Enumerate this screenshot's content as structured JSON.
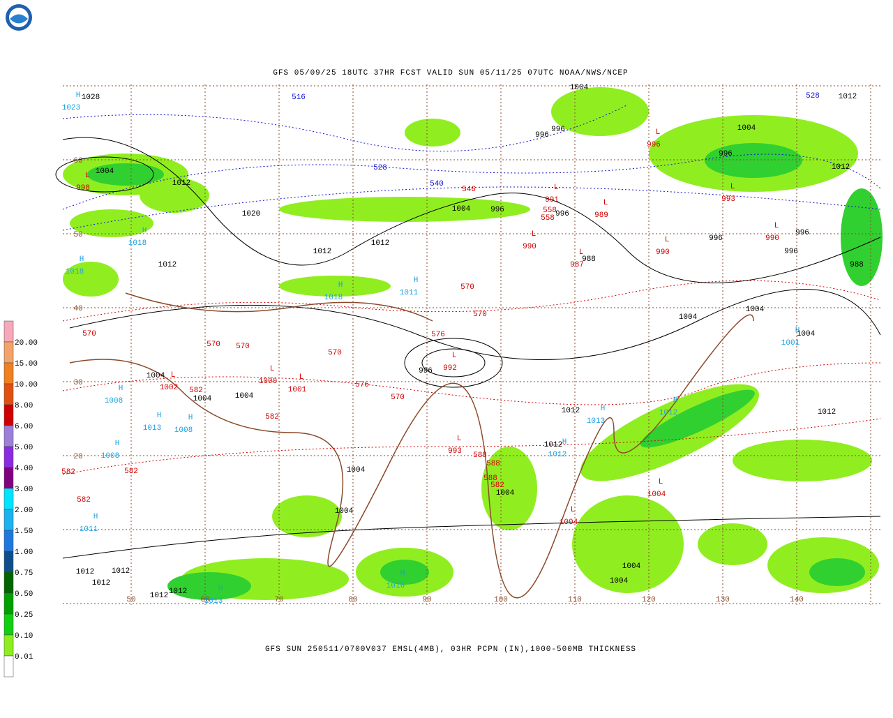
{
  "header": {
    "title": "GFS 05/09/25 18UTC 37HR FCST VALID SUN 05/11/25 07UTC NOAA/NWS/NCEP"
  },
  "caption": "GFS SUN 250511/0700V037 EMSL(4MB), 03HR PCPN (IN),1000-500MB THICKNESS",
  "legend": [
    "20.00",
    "15.00",
    "10.00",
    "8.00",
    "6.00",
    "5.00",
    "4.00",
    "3.00",
    "2.00",
    "1.50",
    "1.00",
    "0.75",
    "0.50",
    "0.25",
    "0.10",
    "0.01"
  ],
  "longitude_labels": [
    "50",
    "60",
    "70",
    "80",
    "90",
    "100",
    "110",
    "120",
    "130",
    "140"
  ],
  "latitude_labels": [
    "60",
    "50",
    "40",
    "30",
    "20"
  ],
  "high_centers": [
    {
      "symbol": "H",
      "value": "1023"
    },
    {
      "symbol": "H",
      "value": "1018"
    },
    {
      "symbol": "H",
      "value": "1018"
    },
    {
      "symbol": "H",
      "value": "1018"
    },
    {
      "symbol": "H",
      "value": "1011"
    },
    {
      "symbol": "H",
      "value": "1008"
    },
    {
      "symbol": "H",
      "value": "1013"
    },
    {
      "symbol": "H",
      "value": "1008"
    },
    {
      "symbol": "H",
      "value": "1008"
    },
    {
      "symbol": "H",
      "value": "1011"
    },
    {
      "symbol": "H",
      "value": "1013"
    },
    {
      "symbol": "H",
      "value": "1012"
    },
    {
      "symbol": "H",
      "value": "1012"
    },
    {
      "symbol": "H",
      "value": "1001"
    },
    {
      "symbol": "H",
      "value": "1016"
    },
    {
      "symbol": "H",
      "value": "1013"
    }
  ],
  "low_centers": [
    {
      "symbol": "L",
      "value": "998"
    },
    {
      "symbol": "L",
      "value": "996"
    },
    {
      "symbol": "L",
      "value": "993"
    },
    {
      "symbol": "L",
      "value": "991"
    },
    {
      "symbol": "L",
      "value": "989"
    },
    {
      "symbol": "L",
      "value": "990"
    },
    {
      "symbol": "L",
      "value": "987"
    },
    {
      "symbol": "L",
      "value": "990"
    },
    {
      "symbol": "L",
      "value": "990"
    },
    {
      "symbol": "L",
      "value": "1002"
    },
    {
      "symbol": "L",
      "value": "1000"
    },
    {
      "symbol": "L",
      "value": "1001"
    },
    {
      "symbol": "L",
      "value": "992"
    },
    {
      "symbol": "L",
      "value": "993"
    },
    {
      "symbol": "L",
      "value": "1004"
    },
    {
      "symbol": "L",
      "value": "1004"
    }
  ],
  "isobar_labels": [
    "1028",
    "1004",
    "1012",
    "1020",
    "1012",
    "1012",
    "1004",
    "996",
    "996",
    "1004",
    "996",
    "1012",
    "1012",
    "1004",
    "996",
    "996",
    "996",
    "996",
    "996",
    "988",
    "988",
    "1004",
    "1004",
    "1004",
    "1004",
    "1004",
    "1004",
    "1004",
    "1004",
    "1012",
    "1012",
    "1012",
    "1004",
    "1004",
    "1004",
    "1012",
    "1012",
    "1012",
    "1012",
    "1012",
    "1012",
    "996"
  ],
  "thickness_labels_warm": [
    "570",
    "570",
    "570",
    "570",
    "570",
    "570",
    "576",
    "576",
    "582",
    "582",
    "582",
    "582",
    "582",
    "588",
    "588",
    "588",
    "582",
    "546",
    "558",
    "558",
    "570"
  ],
  "thickness_labels_cold": [
    "516",
    "528",
    "540",
    "528"
  ]
}
